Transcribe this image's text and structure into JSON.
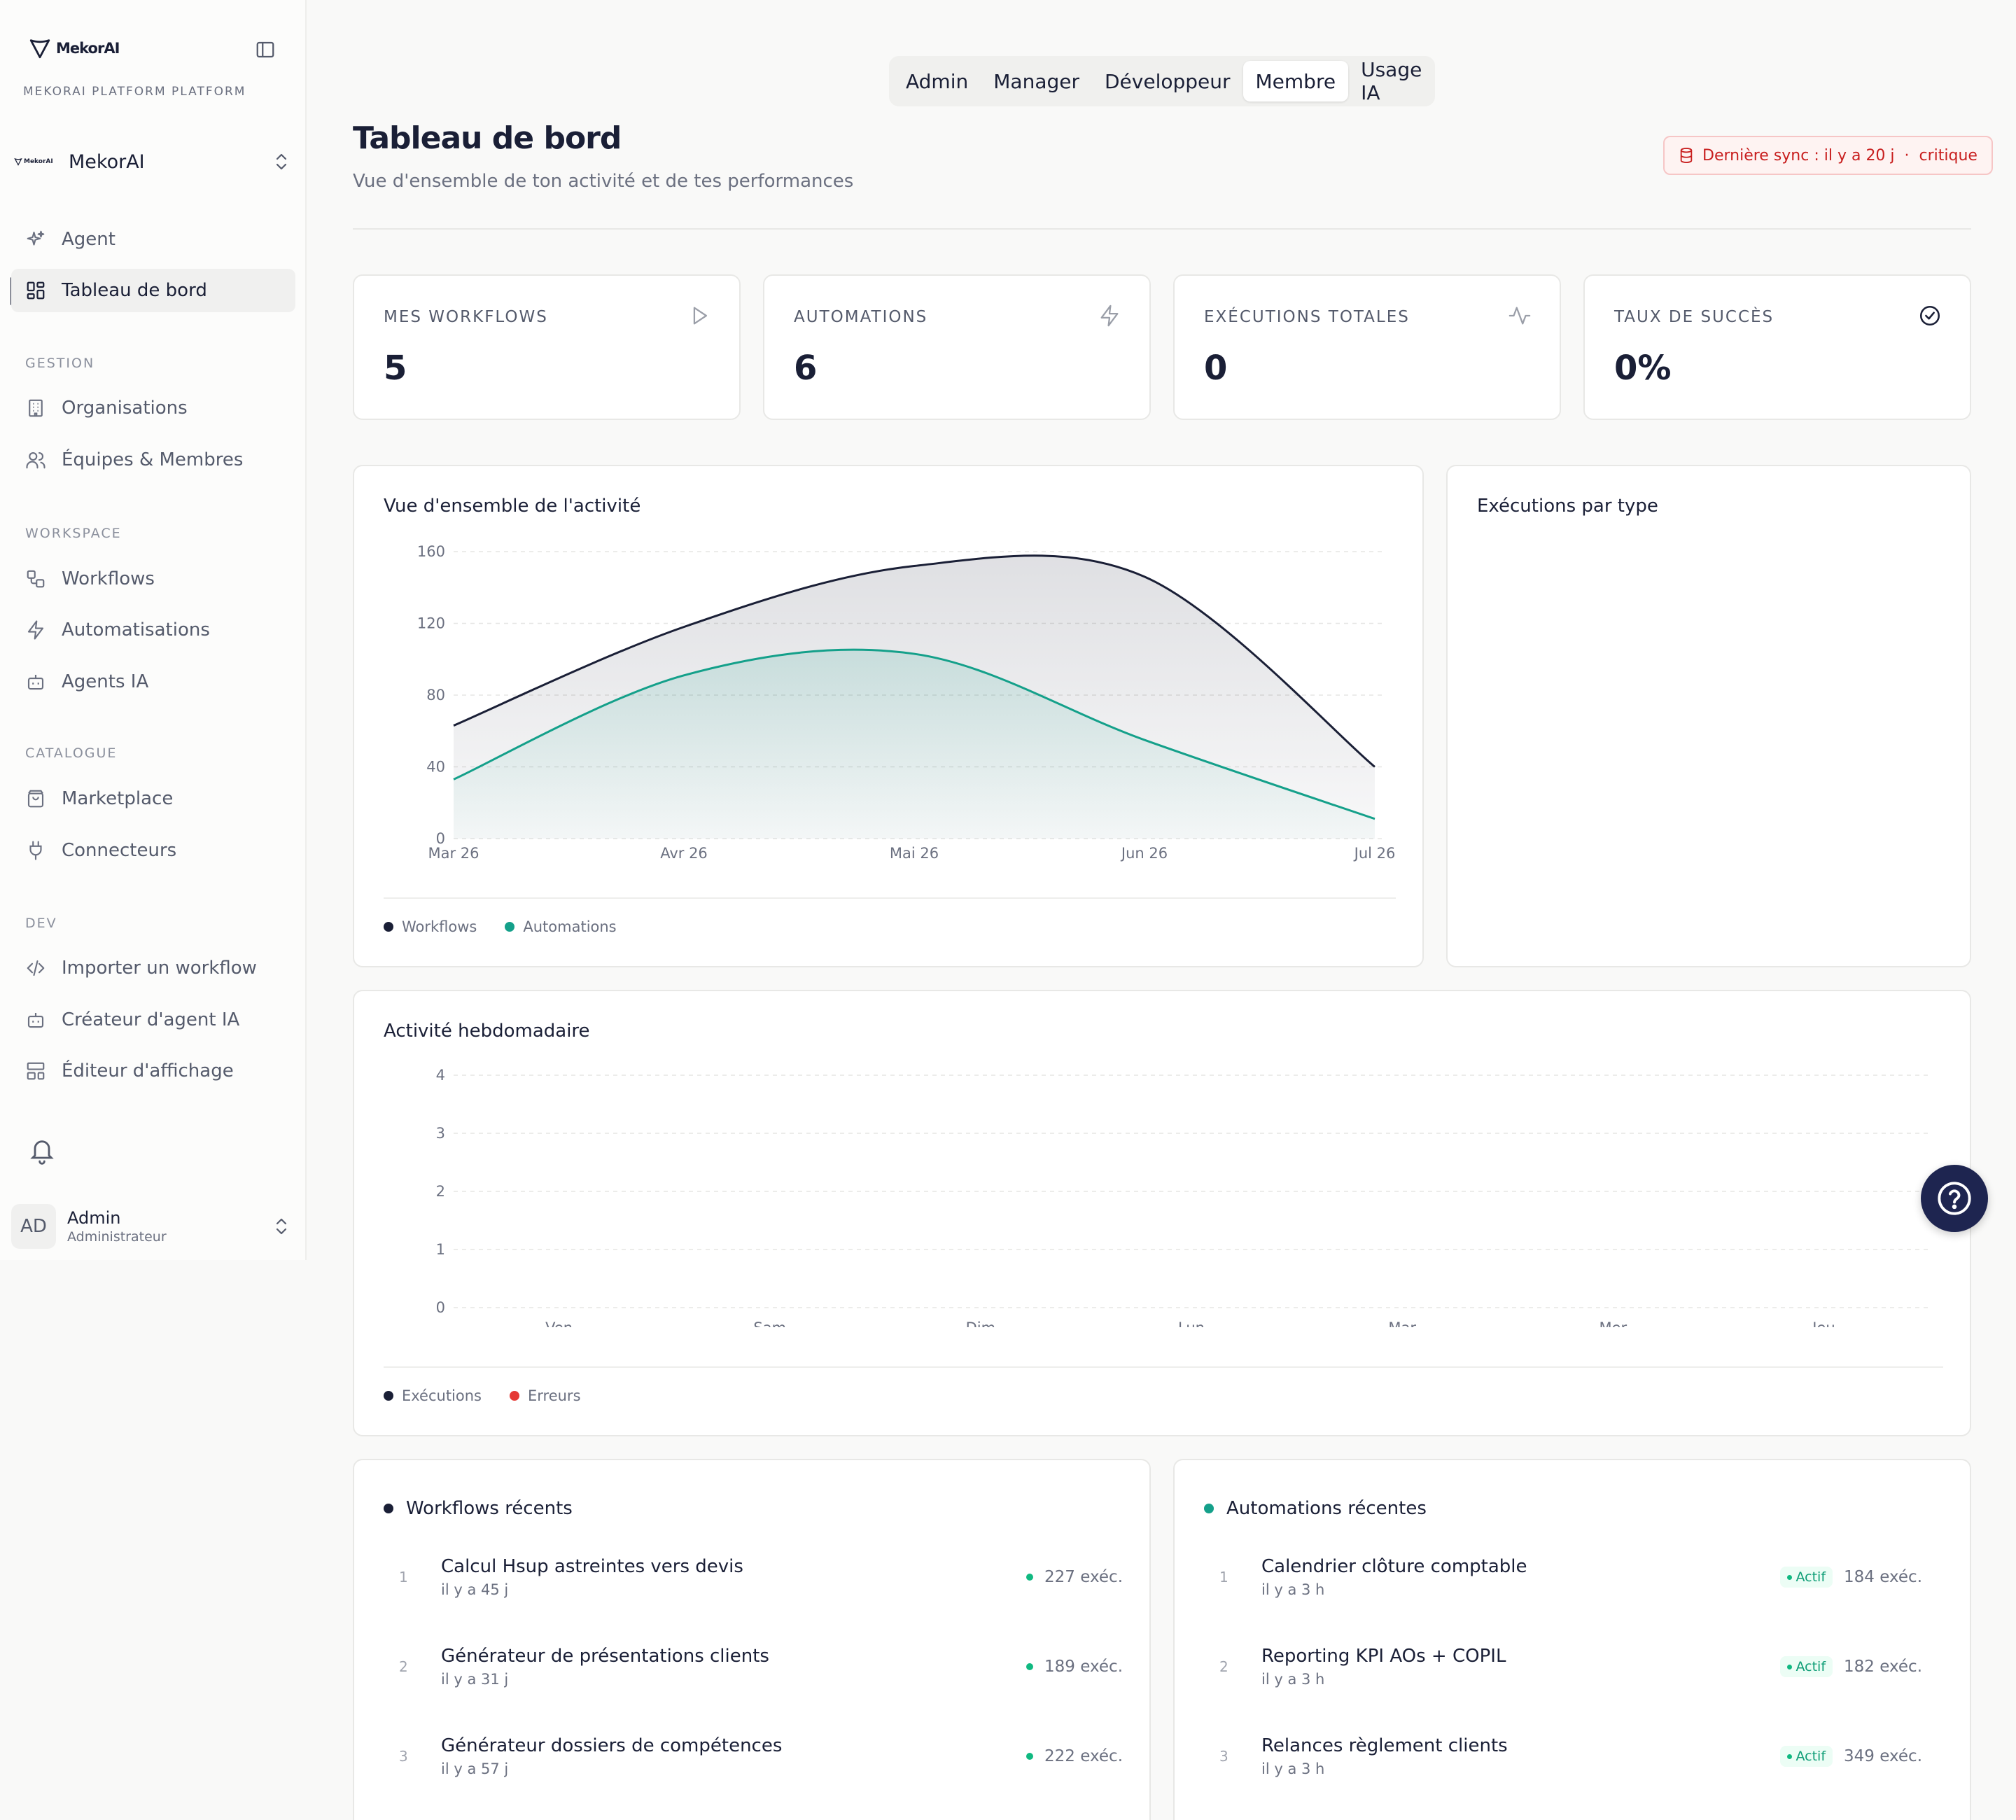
{
  "brand": {
    "name": "MekorAI",
    "platform_label": "MEKORAI PLATFORM PLATFORM"
  },
  "org": {
    "logo_text": "MekorAI",
    "name": "MekorAI"
  },
  "nav": {
    "top": [
      {
        "label": "Agent",
        "icon": "sparkles-icon"
      },
      {
        "label": "Tableau de bord",
        "icon": "dashboard-icon",
        "active": true
      }
    ],
    "sections": [
      {
        "label": "GESTION",
        "items": [
          {
            "label": "Organisations",
            "icon": "building-icon"
          },
          {
            "label": "Équipes & Membres",
            "icon": "users-icon"
          }
        ]
      },
      {
        "label": "WORKSPACE",
        "items": [
          {
            "label": "Workflows",
            "icon": "workflow-icon"
          },
          {
            "label": "Automatisations",
            "icon": "zap-icon"
          },
          {
            "label": "Agents IA",
            "icon": "bot-icon"
          }
        ]
      },
      {
        "label": "CATALOGUE",
        "items": [
          {
            "label": "Marketplace",
            "icon": "shopping-bag-icon"
          },
          {
            "label": "Connecteurs",
            "icon": "plug-icon"
          }
        ]
      },
      {
        "label": "DEV",
        "items": [
          {
            "label": "Importer un workflow",
            "icon": "code-icon"
          },
          {
            "label": "Créateur d'agent IA",
            "icon": "bot-icon"
          },
          {
            "label": "Éditeur d'affichage",
            "icon": "layout-icon"
          }
        ]
      }
    ]
  },
  "user": {
    "initials": "AD",
    "name": "Admin",
    "role": "Administrateur"
  },
  "role_tabs": [
    "Admin",
    "Manager",
    "Développeur",
    "Membre",
    "Usage IA"
  ],
  "active_role_tab": "Membre",
  "header": {
    "title": "Tableau de bord",
    "subtitle": "Vue d'ensemble de ton activité et de tes performances",
    "sync_text": "Dernière sync : il y a 20 j  ·  critique"
  },
  "stats": [
    {
      "label": "MES WORKFLOWS",
      "value": "5",
      "icon": "play-icon"
    },
    {
      "label": "AUTOMATIONS",
      "value": "6",
      "icon": "zap-icon"
    },
    {
      "label": "EXÉCUTIONS TOTALES",
      "value": "0",
      "icon": "activity-icon"
    },
    {
      "label": "TAUX DE SUCCÈS",
      "value": "0%",
      "icon": "check-circle-icon"
    }
  ],
  "activity_card": {
    "title": "Vue d'ensemble de l'activité"
  },
  "exec_type_card": {
    "title": "Exécutions par type"
  },
  "weekly_card": {
    "title": "Activité hebdomadaire"
  },
  "colors": {
    "workflows": "#1a1f36",
    "automations": "#14a08a",
    "executions": "#1a1f36",
    "errors": "#e53935",
    "accent": "#1e2550"
  },
  "chart_data": [
    {
      "type": "area",
      "title": "Vue d'ensemble de l'activité",
      "x": [
        "Mar 26",
        "Avr 26",
        "Mai 26",
        "Jun 26",
        "Jul 26"
      ],
      "ylim": [
        0,
        160
      ],
      "yticks": [
        0,
        40,
        80,
        120,
        160
      ],
      "grid": true,
      "legend": "bottom-left",
      "series": [
        {
          "name": "Workflows",
          "values": [
            63,
            118,
            152,
            146,
            40
          ]
        },
        {
          "name": "Automations",
          "values": [
            33,
            91,
            103,
            55,
            11
          ]
        }
      ]
    },
    {
      "type": "bar",
      "title": "Activité hebdomadaire",
      "categories": [
        "Ven",
        "Sam",
        "Dim",
        "Lun",
        "Mar",
        "Mer",
        "Jeu"
      ],
      "ylim": [
        0,
        4
      ],
      "yticks": [
        0,
        1,
        2,
        3,
        4
      ],
      "grid": true,
      "legend": "bottom-left",
      "series": [
        {
          "name": "Exécutions",
          "values": [
            0,
            0,
            0,
            0,
            0,
            0,
            0
          ]
        },
        {
          "name": "Erreurs",
          "values": [
            0,
            0,
            0,
            0,
            0,
            0,
            0
          ]
        }
      ]
    }
  ],
  "recent_workflows": {
    "title": "Workflows récents",
    "items": [
      {
        "index": "1",
        "name": "Calcul Hsup astreintes vers devis",
        "time": "il y a 45 j",
        "execs": "227 exéc."
      },
      {
        "index": "2",
        "name": "Générateur de présentations clients",
        "time": "il y a 31 j",
        "execs": "189 exéc."
      },
      {
        "index": "3",
        "name": "Générateur dossiers de compétences",
        "time": "il y a 57 j",
        "execs": "222 exéc."
      }
    ]
  },
  "recent_automations": {
    "title": "Automations récentes",
    "items": [
      {
        "index": "1",
        "name": "Calendrier clôture comptable",
        "time": "il y a 3 h",
        "status": "Actif",
        "execs": "184 exéc."
      },
      {
        "index": "2",
        "name": "Reporting KPI AOs + COPIL",
        "time": "il y a 3 h",
        "status": "Actif",
        "execs": "182 exéc."
      },
      {
        "index": "3",
        "name": "Relances règlement clients",
        "time": "il y a 3 h",
        "status": "Actif",
        "execs": "349 exéc."
      }
    ]
  }
}
